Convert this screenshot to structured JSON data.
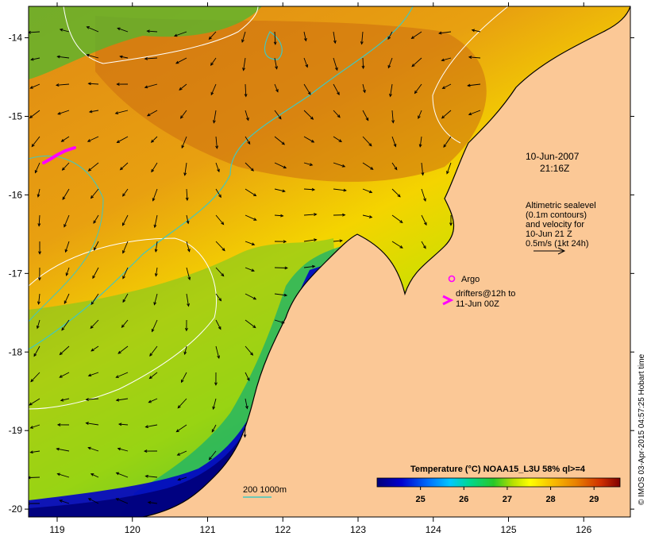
{
  "map": {
    "x_axis": {
      "min": 118.62,
      "max": 126.62,
      "ticks": [
        119,
        120,
        121,
        122,
        123,
        124,
        125,
        126
      ]
    },
    "y_axis": {
      "min": -20.1,
      "max": -13.6,
      "ticks": [
        -14,
        -15,
        -16,
        -17,
        -18,
        -19,
        -20
      ]
    },
    "x_tick_labels": [
      "119",
      "120",
      "121",
      "122",
      "123",
      "124",
      "125",
      "126"
    ],
    "y_tick_labels": [
      "-14",
      "-15",
      "-16",
      "-17",
      "-18",
      "-19",
      "-20"
    ]
  },
  "timestamp": {
    "date": "10-Jun-2007",
    "time": "21:16Z"
  },
  "altimetry_note": {
    "line1": "Altimetric sealevel",
    "line2": "(0.1m contours)",
    "line3": "and velocity for",
    "line4": "10-Jun 21 Z",
    "line5": "0.5m/s (1kt 24h)"
  },
  "argo_label": "Argo",
  "drifters": {
    "line1": "drifters@12h to",
    "line2": "11-Jun 00Z"
  },
  "bathymetry_label": "200  1000m",
  "colorbar": {
    "title": "Temperature (°C) NOAA15_L3U 58% ql>=4",
    "min": 24.0,
    "max": 29.6,
    "ticks": [
      25,
      26,
      27,
      28,
      29
    ],
    "tick_labels": [
      "25",
      "26",
      "27",
      "28",
      "29"
    ]
  },
  "credit": "© IMOS 03-Apr-2015 04:57:25 Hobart time",
  "colors": {
    "land": "#fbc896",
    "frame": "#000000",
    "contour": "#ffffff",
    "isobath": "#40c8c0",
    "drifter": "#ff00ff"
  }
}
